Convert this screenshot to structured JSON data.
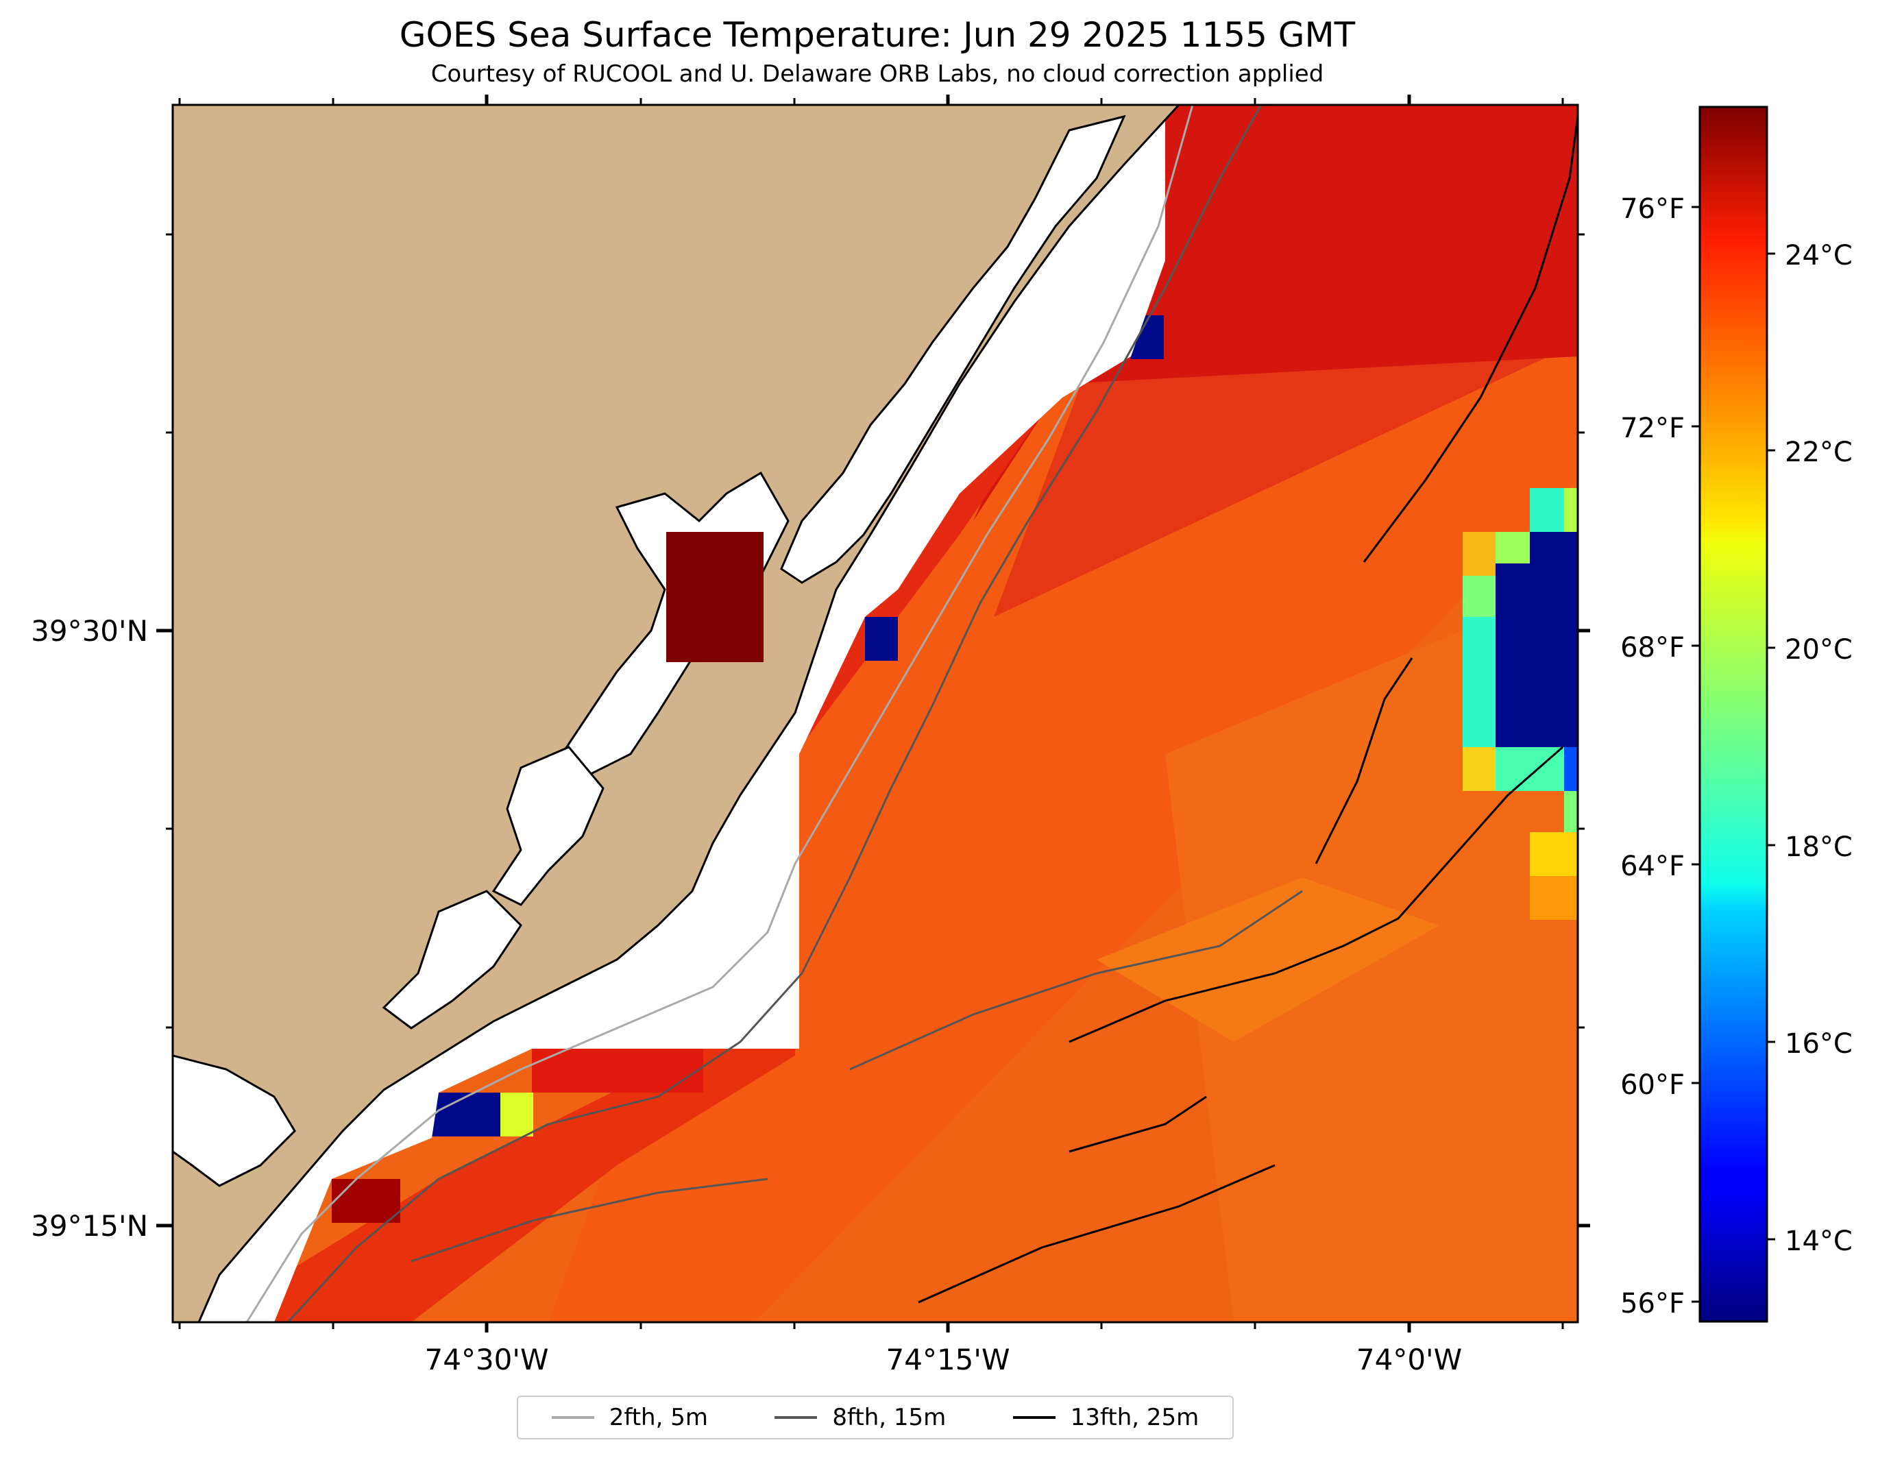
{
  "title": "GOES Sea Surface Temperature: Jun 29 2025 1155 GMT",
  "subtitle": "Courtesy of RUCOOL and U. Delaware ORB Labs, no cloud correction applied",
  "map": {
    "lon_ticks": [
      "74°30'W",
      "74°15'W",
      "74°0'W"
    ],
    "lat_ticks": [
      "39°30'N",
      "39°15'N"
    ],
    "colors": {
      "land": "#d2b48c",
      "no_data": "#ffffff"
    }
  },
  "colorbar": {
    "celsius_ticks": [
      "24°C",
      "22°C",
      "20°C",
      "18°C",
      "16°C",
      "14°C"
    ],
    "fahrenheit_ticks": [
      "76°F",
      "72°F",
      "68°F",
      "64°F",
      "60°F",
      "56°F"
    ],
    "colormap": "jet",
    "celsius_range": [
      12.8,
      25.1
    ]
  },
  "legend": {
    "items": [
      {
        "label": "2fth, 5m",
        "color": "#aaaaaa"
      },
      {
        "label": "8fth, 15m",
        "color": "#555555"
      },
      {
        "label": "13fth, 25m",
        "color": "#000000"
      }
    ]
  }
}
